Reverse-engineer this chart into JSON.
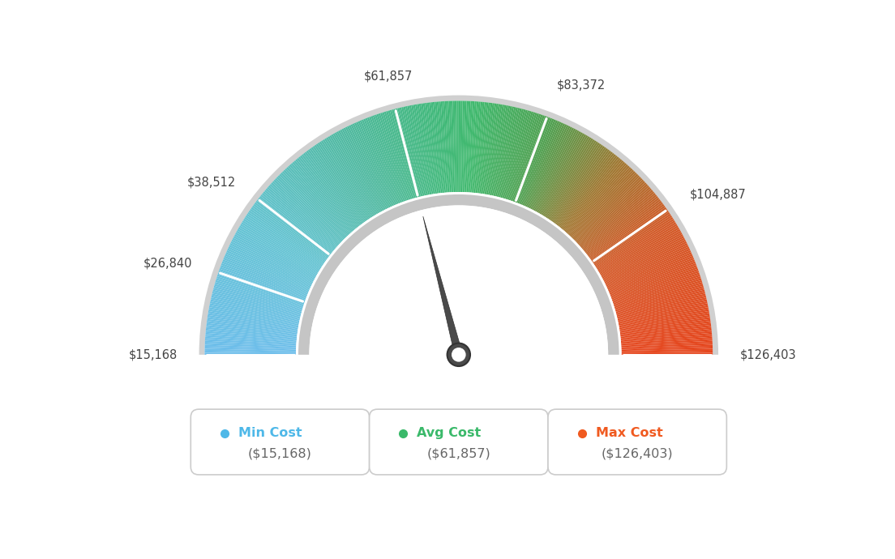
{
  "min_value": 15168,
  "avg_value": 61857,
  "max_value": 126403,
  "tick_labels": [
    "$15,168",
    "$26,840",
    "$38,512",
    "$61,857",
    "$83,372",
    "$104,887",
    "$126,403"
  ],
  "tick_values": [
    15168,
    26840,
    38512,
    61857,
    83372,
    104887,
    126403
  ],
  "legend": [
    {
      "label": "Min Cost",
      "value": "($15,168)",
      "color": "#4eb8e8"
    },
    {
      "label": "Avg Cost",
      "value": "($61,857)",
      "color": "#3ab96a"
    },
    {
      "label": "Max Cost",
      "value": "($126,403)",
      "color": "#f05a20"
    }
  ],
  "color_stops": [
    [
      0.0,
      [
        109,
        190,
        235
      ]
    ],
    [
      0.18,
      [
        100,
        195,
        210
      ]
    ],
    [
      0.35,
      [
        80,
        185,
        160
      ]
    ],
    [
      0.48,
      [
        65,
        185,
        120
      ]
    ],
    [
      0.52,
      [
        65,
        185,
        110
      ]
    ],
    [
      0.62,
      [
        80,
        160,
        80
      ]
    ],
    [
      0.72,
      [
        160,
        120,
        50
      ]
    ],
    [
      0.82,
      [
        210,
        90,
        40
      ]
    ],
    [
      1.0,
      [
        230,
        70,
        30
      ]
    ]
  ],
  "background_color": "#ffffff",
  "outer_border_color": "#d8d8d8",
  "inner_ring_color": "#c8c8c8",
  "needle_color": "#555555",
  "needle_outline": "#444444"
}
